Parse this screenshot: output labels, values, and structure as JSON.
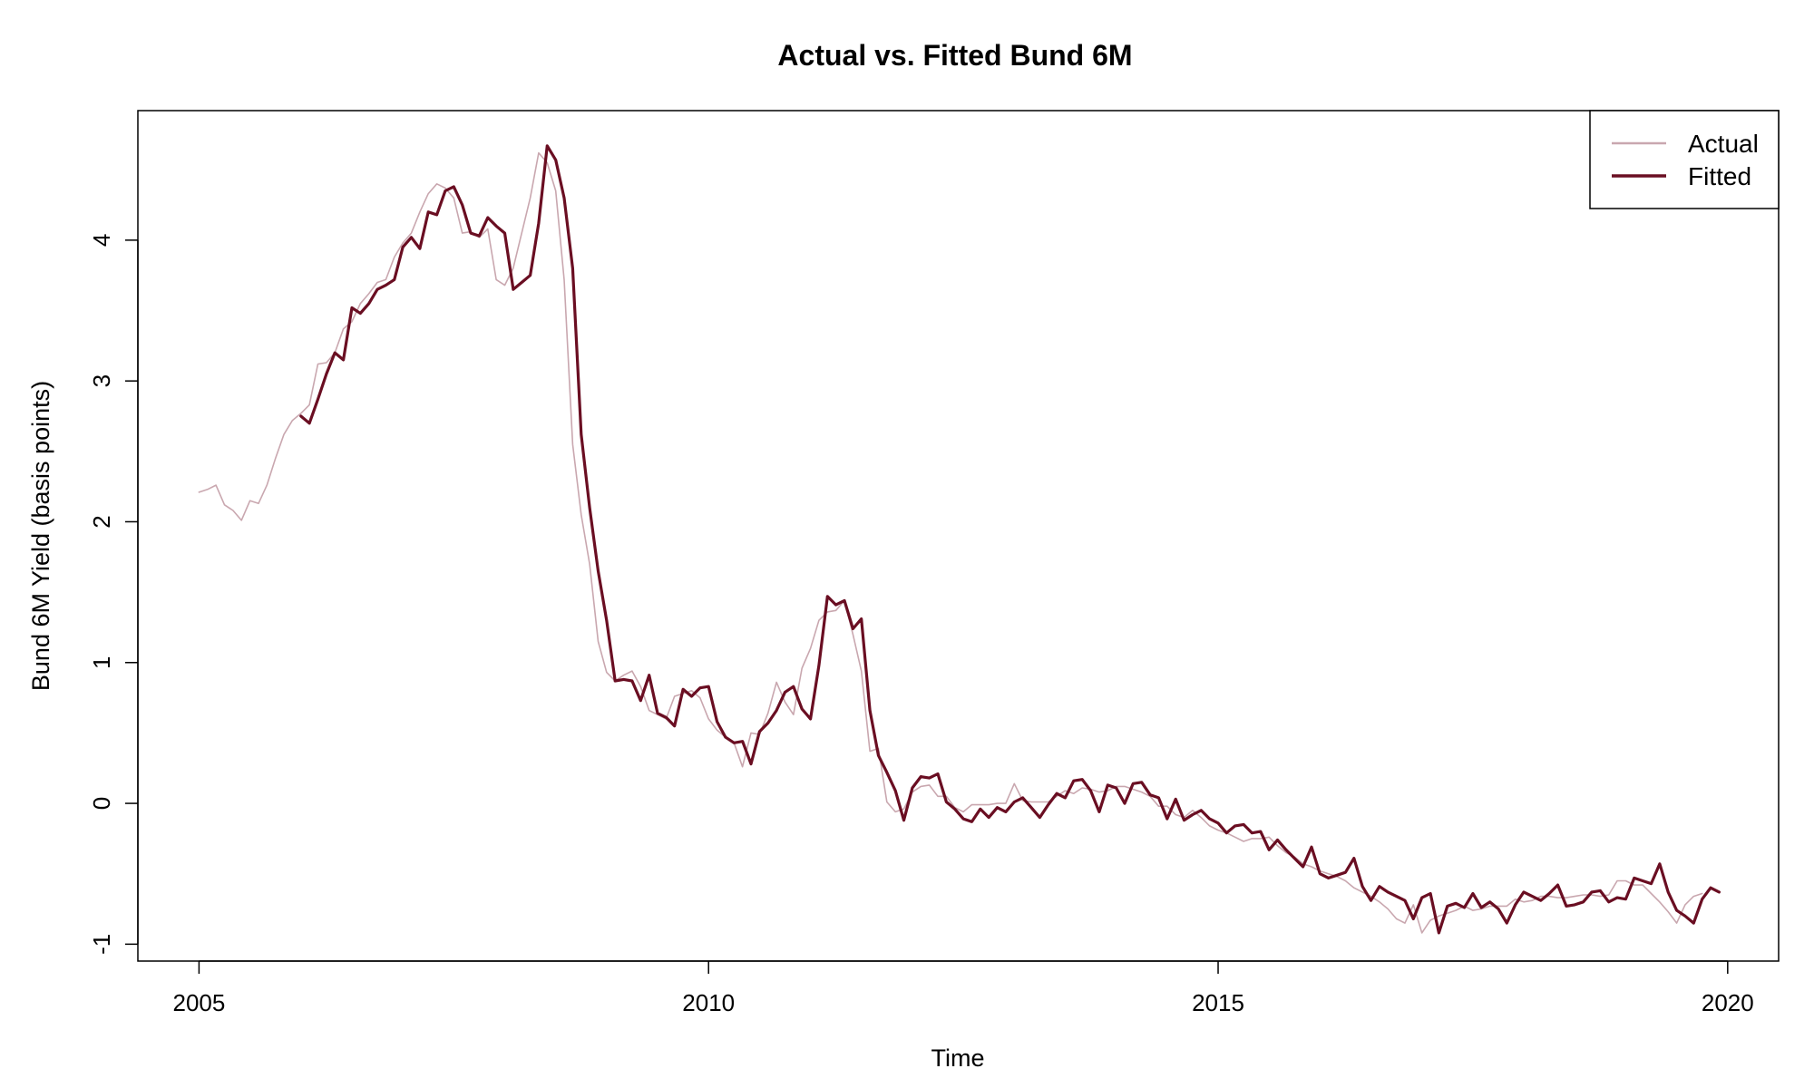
{
  "chart_data": {
    "type": "line",
    "title": "Actual vs. Fitted Bund 6M",
    "xlabel": "Time",
    "ylabel": "Bund 6M Yield (basis points)",
    "xlim": [
      2004.4,
      2020.5
    ],
    "ylim": [
      -1.12,
      4.92
    ],
    "x_ticks": [
      2005,
      2010,
      2015,
      2020
    ],
    "y_ticks": [
      -1,
      0,
      1,
      2,
      3,
      4
    ],
    "legend": {
      "position": "top-right",
      "entries": [
        "Actual",
        "Fitted"
      ]
    },
    "series": [
      {
        "name": "Actual",
        "color": "#c9a7af",
        "x_start": 2005.0,
        "x_step": 0.08333,
        "values": [
          2.21,
          2.23,
          2.26,
          2.12,
          2.08,
          2.01,
          2.15,
          2.13,
          2.26,
          2.45,
          2.62,
          2.72,
          2.77,
          2.83,
          3.12,
          3.13,
          3.2,
          3.37,
          3.42,
          3.55,
          3.62,
          3.7,
          3.72,
          3.88,
          3.98,
          4.05,
          4.2,
          4.33,
          4.4,
          4.37,
          4.3,
          4.05,
          4.06,
          4.02,
          4.08,
          3.72,
          3.68,
          3.8,
          4.05,
          4.3,
          4.62,
          4.55,
          4.35,
          3.72,
          2.55,
          2.05,
          1.7,
          1.15,
          0.93,
          0.87,
          0.91,
          0.94,
          0.83,
          0.66,
          0.63,
          0.6,
          0.76,
          0.78,
          0.8,
          0.75,
          0.6,
          0.52,
          0.47,
          0.43,
          0.26,
          0.5,
          0.49,
          0.64,
          0.86,
          0.72,
          0.63,
          0.96,
          1.1,
          1.3,
          1.36,
          1.37,
          1.44,
          1.2,
          0.94,
          0.37,
          0.39,
          0.01,
          -0.06,
          -0.04,
          0.08,
          0.12,
          0.13,
          0.05,
          0.05,
          -0.03,
          -0.06,
          -0.01,
          -0.01,
          -0.01,
          0.0,
          0.0,
          0.14,
          0.02,
          0.01,
          0.01,
          0.01,
          0.05,
          0.09,
          0.07,
          0.11,
          0.1,
          0.08,
          0.09,
          0.12,
          0.12,
          0.1,
          0.08,
          0.05,
          -0.02,
          -0.02,
          -0.08,
          -0.1,
          -0.05,
          -0.1,
          -0.16,
          -0.19,
          -0.21,
          -0.24,
          -0.27,
          -0.25,
          -0.25,
          -0.24,
          -0.3,
          -0.35,
          -0.38,
          -0.43,
          -0.45,
          -0.48,
          -0.5,
          -0.52,
          -0.55,
          -0.6,
          -0.63,
          -0.66,
          -0.7,
          -0.75,
          -0.82,
          -0.85,
          -0.72,
          -0.92,
          -0.83,
          -0.8,
          -0.78,
          -0.76,
          -0.73,
          -0.76,
          -0.75,
          -0.73,
          -0.73,
          -0.73,
          -0.68,
          -0.7,
          -0.69,
          -0.66,
          -0.66,
          -0.67,
          -0.67,
          -0.66,
          -0.65,
          -0.65,
          -0.66,
          -0.65,
          -0.55,
          -0.55,
          -0.58,
          -0.58,
          -0.64,
          -0.7,
          -0.77,
          -0.85,
          -0.72,
          -0.66,
          -0.64
        ]
      },
      {
        "name": "Fitted",
        "color": "#6a0e22",
        "x_start": 2006.0,
        "x_step": 0.08333,
        "values": [
          2.75,
          2.7,
          2.87,
          3.05,
          3.2,
          3.15,
          3.52,
          3.48,
          3.55,
          3.65,
          3.68,
          3.72,
          3.95,
          4.02,
          3.94,
          4.2,
          4.18,
          4.35,
          4.38,
          4.25,
          4.05,
          4.03,
          4.16,
          4.1,
          4.05,
          3.65,
          3.7,
          3.75,
          4.12,
          4.67,
          4.57,
          4.3,
          3.8,
          2.62,
          2.1,
          1.65,
          1.3,
          0.87,
          0.88,
          0.87,
          0.73,
          0.91,
          0.64,
          0.61,
          0.55,
          0.81,
          0.76,
          0.82,
          0.83,
          0.58,
          0.47,
          0.43,
          0.44,
          0.28,
          0.51,
          0.57,
          0.66,
          0.79,
          0.83,
          0.67,
          0.6,
          0.98,
          1.47,
          1.41,
          1.44,
          1.24,
          1.31,
          0.66,
          0.34,
          0.22,
          0.09,
          -0.12,
          0.11,
          0.19,
          0.18,
          0.21,
          0.01,
          -0.04,
          -0.11,
          -0.13,
          -0.04,
          -0.1,
          -0.03,
          -0.06,
          0.01,
          0.04,
          -0.03,
          -0.1,
          -0.01,
          0.07,
          0.04,
          0.16,
          0.17,
          0.09,
          -0.06,
          0.13,
          0.11,
          0.0,
          0.14,
          0.15,
          0.06,
          0.04,
          -0.11,
          0.03,
          -0.12,
          -0.08,
          -0.05,
          -0.11,
          -0.14,
          -0.21,
          -0.16,
          -0.15,
          -0.21,
          -0.2,
          -0.33,
          -0.26,
          -0.33,
          -0.39,
          -0.45,
          -0.31,
          -0.5,
          -0.53,
          -0.51,
          -0.49,
          -0.39,
          -0.59,
          -0.69,
          -0.59,
          -0.63,
          -0.66,
          -0.69,
          -0.82,
          -0.67,
          -0.64,
          -0.92,
          -0.73,
          -0.71,
          -0.74,
          -0.64,
          -0.74,
          -0.7,
          -0.75,
          -0.85,
          -0.72,
          -0.63,
          -0.66,
          -0.69,
          -0.64,
          -0.58,
          -0.73,
          -0.72,
          -0.7,
          -0.63,
          -0.62,
          -0.7,
          -0.67,
          -0.68,
          -0.53,
          -0.55,
          -0.57,
          -0.43,
          -0.63,
          -0.76,
          -0.8,
          -0.85,
          -0.68,
          -0.6,
          -0.63
        ]
      }
    ]
  }
}
